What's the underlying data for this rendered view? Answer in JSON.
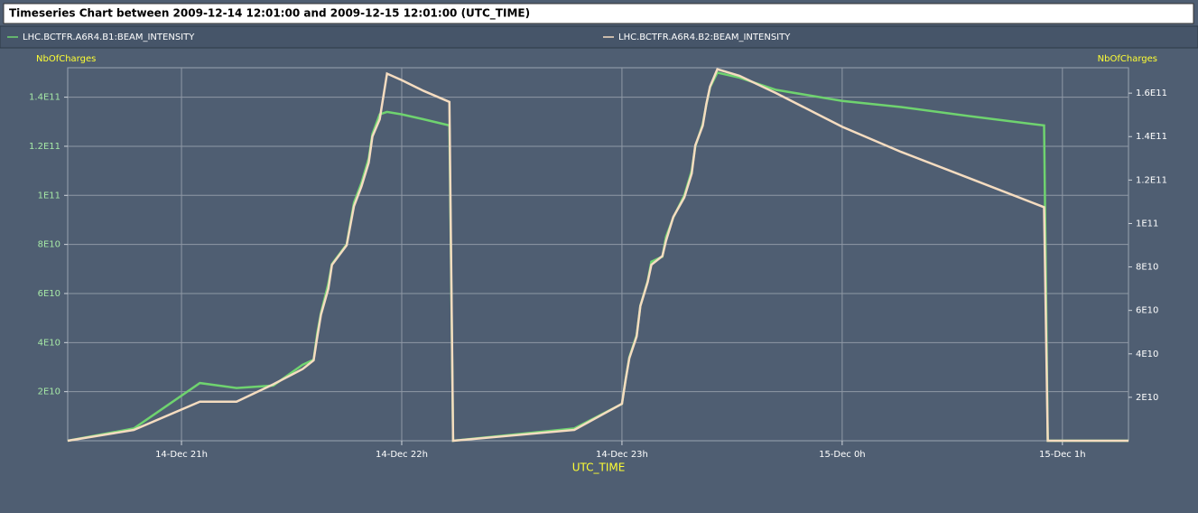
{
  "chart_data": {
    "type": "line",
    "title": "Timeseries Chart between 2009-12-14 12:01:00 and 2009-12-15 12:01:00 (UTC_TIME)",
    "xlabel": "UTC_TIME",
    "ylabel": "NbOfCharges",
    "y2label": "NbOfCharges",
    "x": [
      "2009-12-14 20:29",
      "2009-12-14 20:47",
      "2009-12-14 21:05",
      "2009-12-14 21:15",
      "2009-12-14 21:25",
      "2009-12-14 21:33",
      "2009-12-14 21:36",
      "2009-12-14 21:37",
      "2009-12-14 21:38",
      "2009-12-14 21:40",
      "2009-12-14 21:41",
      "2009-12-14 21:45",
      "2009-12-14 21:47",
      "2009-12-14 21:49",
      "2009-12-14 21:51",
      "2009-12-14 21:52",
      "2009-12-14 21:54",
      "2009-12-14 21:56",
      "2009-12-14 22:00",
      "2009-12-14 22:06",
      "2009-12-14 22:13",
      "2009-12-14 22:14",
      "2009-12-14 22:47",
      "2009-12-14 23:00",
      "2009-12-14 23:01",
      "2009-12-14 23:02",
      "2009-12-14 23:04",
      "2009-12-14 23:05",
      "2009-12-14 23:07",
      "2009-12-14 23:08",
      "2009-12-14 23:11",
      "2009-12-14 23:12",
      "2009-12-14 23:14",
      "2009-12-14 23:17",
      "2009-12-14 23:19",
      "2009-12-14 23:20",
      "2009-12-14 23:22",
      "2009-12-14 23:23",
      "2009-12-14 23:24",
      "2009-12-14 23:26",
      "2009-12-14 23:32",
      "2009-12-14 23:42",
      "2009-12-15 00:00",
      "2009-12-15 00:16",
      "2009-12-15 00:36",
      "2009-12-15 00:55",
      "2009-12-15 00:56",
      "2009-12-15 01:18"
    ],
    "series": [
      {
        "name": "LHC.BCTFR.A6R4.B1:BEAM_INTENSITY",
        "color": "#6fd36f",
        "values": [
          0,
          5000000000.0,
          23500000000.0,
          21500000000.0,
          22500000000.0,
          31000000000.0,
          33000000000.0,
          44000000000.0,
          52000000000.0,
          64000000000.0,
          72000000000.0,
          80000000000.0,
          97000000000.0,
          105000000000.0,
          115000000000.0,
          125000000000.0,
          133000000000.0,
          134000000000.0,
          133000000000.0,
          131000000000.0,
          128500000000.0,
          0,
          5000000000.0,
          15000000000.0,
          25000000000.0,
          34000000000.0,
          43000000000.0,
          55000000000.0,
          65000000000.0,
          73000000000.0,
          75000000000.0,
          83000000000.0,
          91000000000.0,
          100000000000.0,
          110000000000.0,
          120000000000.0,
          129000000000.0,
          137000000000.0,
          144000000000.0,
          150000000000.0,
          148000000000.0,
          143000000000.0,
          138500000000.0,
          136000000000.0,
          132000000000.0,
          128500000000.0,
          0,
          0
        ]
      },
      {
        "name": "LHC.BCTFR.A6R4.B2:BEAM_INTENSITY",
        "color": "#f5dcc0",
        "axis": "y2",
        "values": [
          0,
          5000000000.0,
          18000000000.0,
          18000000000.0,
          26000000000.0,
          33000000000.0,
          37000000000.0,
          48000000000.0,
          58000000000.0,
          70000000000.0,
          81000000000.0,
          90000000000.0,
          108000000000.0,
          117000000000.0,
          128000000000.0,
          140000000000.0,
          148000000000.0,
          169000000000.0,
          166000000000.0,
          161000000000.0,
          156000000000.0,
          0,
          5000000000.0,
          17000000000.0,
          28000000000.0,
          38000000000.0,
          48000000000.0,
          62000000000.0,
          73000000000.0,
          81000000000.0,
          85000000000.0,
          92000000000.0,
          103000000000.0,
          112000000000.0,
          123000000000.0,
          136000000000.0,
          145000000000.0,
          155000000000.0,
          163000000000.0,
          171000000000.0,
          168000000000.0,
          160000000000.0,
          144500000000.0,
          133000000000.0,
          120000000000.0,
          107500000000.0,
          0,
          0
        ]
      }
    ],
    "xlim": [
      "2009-12-14 20:29",
      "2009-12-15 01:18"
    ],
    "xticks": [
      {
        "value": "2009-12-14 21:00",
        "label": "14-Dec 21h"
      },
      {
        "value": "2009-12-14 22:00",
        "label": "14-Dec 22h"
      },
      {
        "value": "2009-12-14 23:00",
        "label": "14-Dec 23h"
      },
      {
        "value": "2009-12-15 00:00",
        "label": "15-Dec 0h"
      },
      {
        "value": "2009-12-15 01:00",
        "label": "15-Dec 1h"
      }
    ],
    "ylim": [
      0,
      152000000000.0
    ],
    "yticks": [
      {
        "value": 20000000000.0,
        "label": "2E10"
      },
      {
        "value": 40000000000.0,
        "label": "4E10"
      },
      {
        "value": 60000000000.0,
        "label": "6E10"
      },
      {
        "value": 80000000000.0,
        "label": "8E10"
      },
      {
        "value": 100000000000.0,
        "label": "1E11"
      },
      {
        "value": 120000000000.0,
        "label": "1.2E11"
      },
      {
        "value": 140000000000.0,
        "label": "1.4E11"
      }
    ],
    "y2lim": [
      0,
      171700000000.0
    ],
    "y2ticks": [
      {
        "value": 20000000000.0,
        "label": "2E10"
      },
      {
        "value": 40000000000.0,
        "label": "4E10"
      },
      {
        "value": 60000000000.0,
        "label": "6E10"
      },
      {
        "value": 80000000000.0,
        "label": "8E10"
      },
      {
        "value": 100000000000.0,
        "label": "1E11"
      },
      {
        "value": 120000000000.0,
        "label": "1.2E11"
      },
      {
        "value": 140000000000.0,
        "label": "1.4E11"
      },
      {
        "value": 160000000000.0,
        "label": "1.6E11"
      }
    ],
    "grid": true
  }
}
